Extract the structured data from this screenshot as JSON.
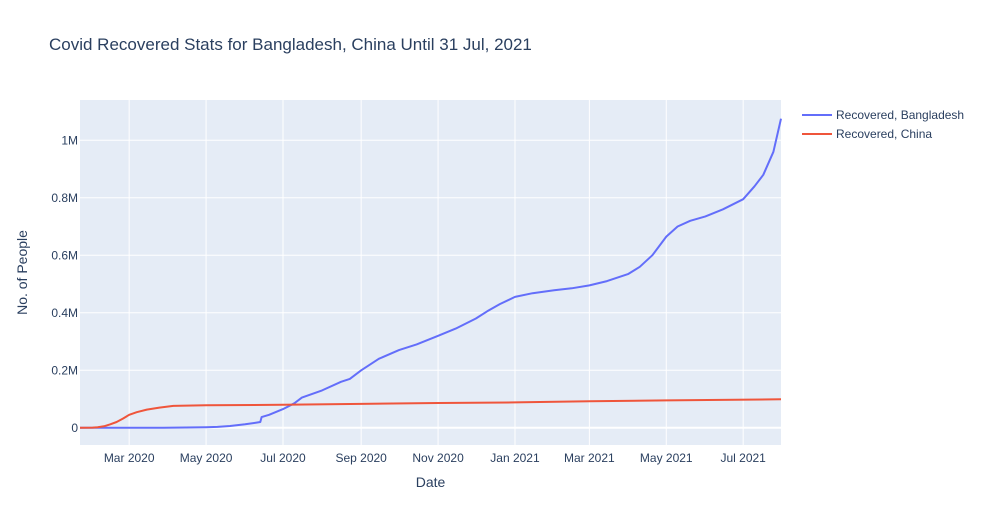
{
  "chart_data": {
    "type": "line",
    "title": "Covid Recovered Stats for Bangladesh, China Until 31 Jul, 2021",
    "xlabel": "Date",
    "ylabel": "No. of People",
    "xrange": [
      "2020-01-22",
      "2021-07-31"
    ],
    "ylim": [
      -60000,
      1140000
    ],
    "x_ticks": [
      {
        "date": "2020-03-01",
        "label": "Mar 2020"
      },
      {
        "date": "2020-05-01",
        "label": "May 2020"
      },
      {
        "date": "2020-07-01",
        "label": "Jul 2020"
      },
      {
        "date": "2020-09-01",
        "label": "Sep 2020"
      },
      {
        "date": "2020-11-01",
        "label": "Nov 2020"
      },
      {
        "date": "2021-01-01",
        "label": "Jan 2021"
      },
      {
        "date": "2021-03-01",
        "label": "Mar 2021"
      },
      {
        "date": "2021-05-01",
        "label": "May 2021"
      },
      {
        "date": "2021-07-01",
        "label": "Jul 2021"
      }
    ],
    "y_ticks": [
      {
        "value": 0,
        "label": "0"
      },
      {
        "value": 200000,
        "label": "0.2M"
      },
      {
        "value": 400000,
        "label": "0.4M"
      },
      {
        "value": 600000,
        "label": "0.6M"
      },
      {
        "value": 800000,
        "label": "0.8M"
      },
      {
        "value": 1000000,
        "label": "1M"
      }
    ],
    "grid": true,
    "legend_position": "top-right",
    "plot_background": "#e5ecf6",
    "series": [
      {
        "name": "Recovered, Bangladesh",
        "color": "#636efa",
        "points": [
          [
            "2020-01-22",
            0
          ],
          [
            "2020-03-08",
            0
          ],
          [
            "2020-03-28",
            0
          ],
          [
            "2020-04-15",
            1000
          ],
          [
            "2020-05-01",
            2000
          ],
          [
            "2020-05-10",
            3000
          ],
          [
            "2020-05-20",
            6000
          ],
          [
            "2020-06-01",
            12000
          ],
          [
            "2020-06-10",
            18000
          ],
          [
            "2020-06-13",
            20000
          ],
          [
            "2020-06-14",
            37000
          ],
          [
            "2020-06-20",
            45000
          ],
          [
            "2020-07-01",
            65000
          ],
          [
            "2020-07-10",
            85000
          ],
          [
            "2020-07-16",
            105000
          ],
          [
            "2020-08-01",
            130000
          ],
          [
            "2020-08-16",
            160000
          ],
          [
            "2020-08-23",
            170000
          ],
          [
            "2020-09-01",
            200000
          ],
          [
            "2020-09-15",
            240000
          ],
          [
            "2020-10-01",
            270000
          ],
          [
            "2020-10-15",
            290000
          ],
          [
            "2020-11-01",
            320000
          ],
          [
            "2020-11-15",
            345000
          ],
          [
            "2020-12-01",
            380000
          ],
          [
            "2020-12-10",
            405000
          ],
          [
            "2020-12-20",
            430000
          ],
          [
            "2021-01-01",
            455000
          ],
          [
            "2021-01-15",
            468000
          ],
          [
            "2021-02-01",
            478000
          ],
          [
            "2021-02-15",
            485000
          ],
          [
            "2021-03-01",
            495000
          ],
          [
            "2021-03-15",
            510000
          ],
          [
            "2021-04-01",
            535000
          ],
          [
            "2021-04-10",
            560000
          ],
          [
            "2021-04-20",
            600000
          ],
          [
            "2021-05-01",
            665000
          ],
          [
            "2021-05-10",
            700000
          ],
          [
            "2021-05-20",
            720000
          ],
          [
            "2021-06-01",
            735000
          ],
          [
            "2021-06-15",
            760000
          ],
          [
            "2021-07-01",
            795000
          ],
          [
            "2021-07-10",
            840000
          ],
          [
            "2021-07-17",
            880000
          ],
          [
            "2021-07-25",
            960000
          ],
          [
            "2021-07-31",
            1075000
          ]
        ]
      },
      {
        "name": "Recovered, China",
        "color": "#ef553b",
        "points": [
          [
            "2020-01-22",
            0
          ],
          [
            "2020-02-01",
            400
          ],
          [
            "2020-02-05",
            1500
          ],
          [
            "2020-02-10",
            5000
          ],
          [
            "2020-02-15",
            12000
          ],
          [
            "2020-02-20",
            20000
          ],
          [
            "2020-02-25",
            32000
          ],
          [
            "2020-03-01",
            45000
          ],
          [
            "2020-03-07",
            54000
          ],
          [
            "2020-03-15",
            63000
          ],
          [
            "2020-03-25",
            70000
          ],
          [
            "2020-04-05",
            76000
          ],
          [
            "2020-05-01",
            78000
          ],
          [
            "2020-07-01",
            80000
          ],
          [
            "2020-09-01",
            83000
          ],
          [
            "2020-11-01",
            86000
          ],
          [
            "2021-01-01",
            88000
          ],
          [
            "2021-03-01",
            92000
          ],
          [
            "2021-05-01",
            95000
          ],
          [
            "2021-07-31",
            99000
          ]
        ]
      }
    ]
  }
}
